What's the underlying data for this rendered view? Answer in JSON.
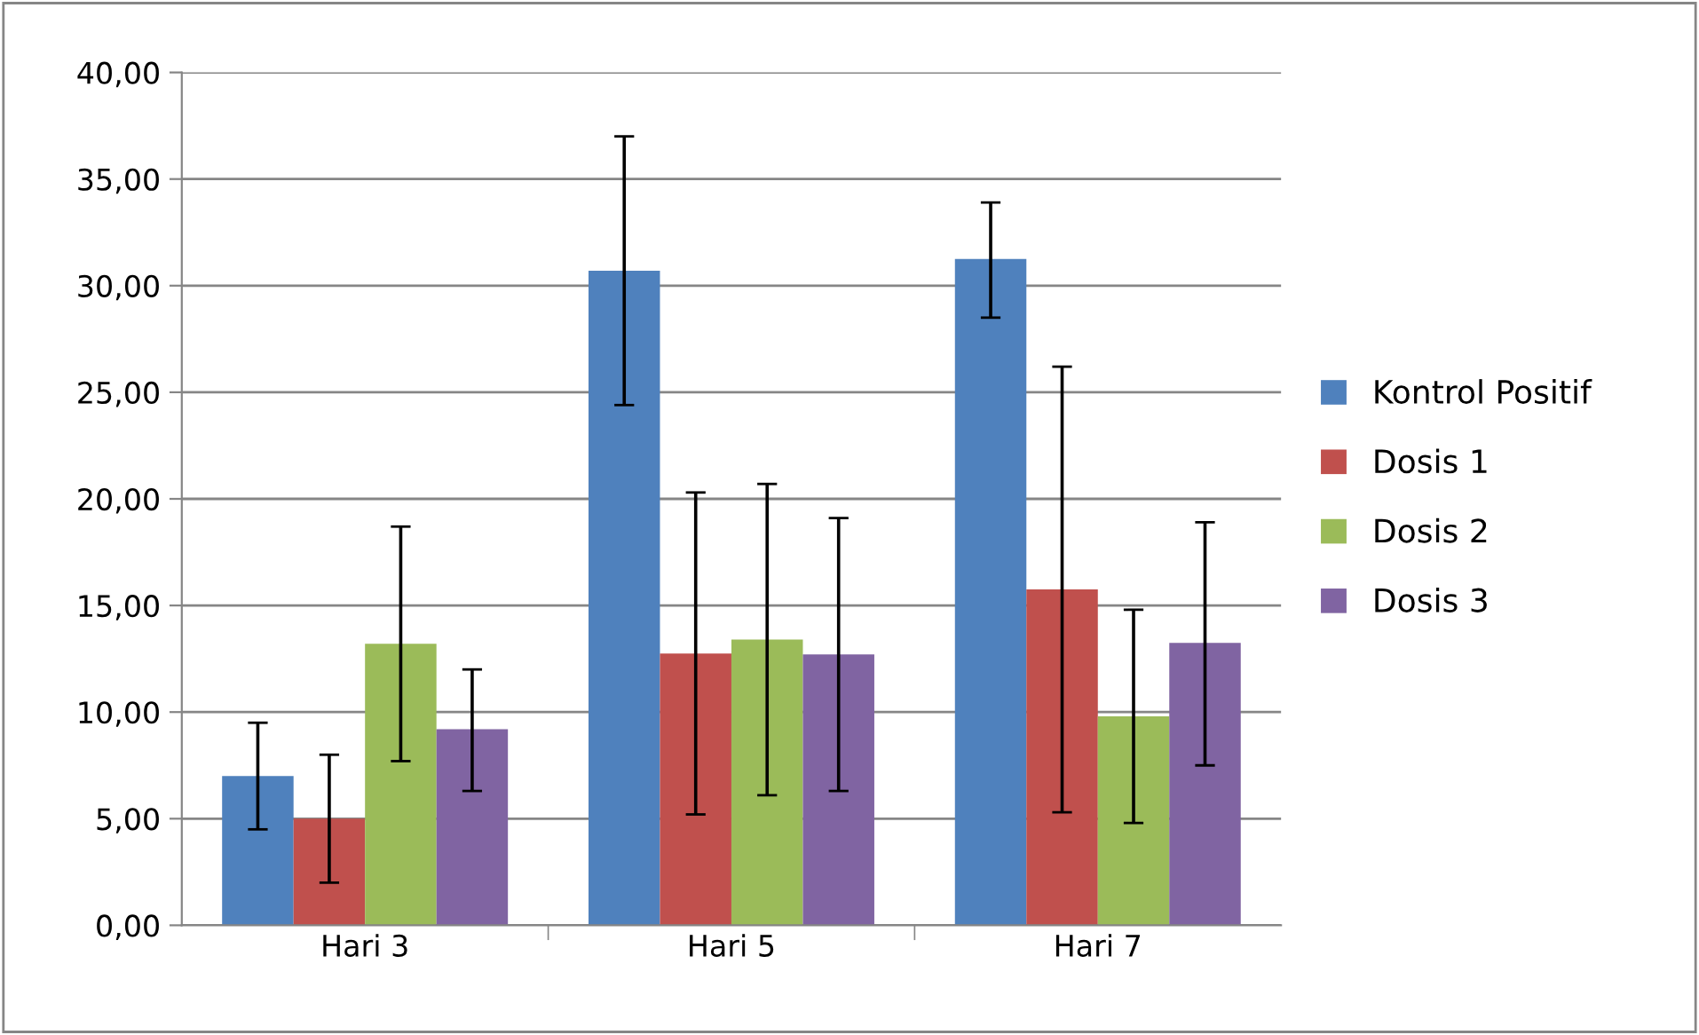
{
  "chart_data": {
    "type": "bar",
    "categories": [
      "Hari 3",
      "Hari 5",
      "Hari 7"
    ],
    "series": [
      {
        "name": "Kontrol Positif",
        "color": "#4f81bd",
        "values": [
          7.0,
          30.7,
          31.25
        ],
        "errors": [
          [
            4.5,
            9.5
          ],
          [
            24.4,
            37.0
          ],
          [
            28.5,
            33.9
          ]
        ]
      },
      {
        "name": "Dosis 1",
        "color": "#c0504d",
        "values": [
          5.0,
          12.75,
          15.75
        ],
        "errors": [
          [
            2.0,
            8.0
          ],
          [
            5.2,
            20.3
          ],
          [
            5.3,
            26.2
          ]
        ]
      },
      {
        "name": "Dosis 2",
        "color": "#9bbb59",
        "values": [
          13.2,
          13.4,
          9.8
        ],
        "errors": [
          [
            7.7,
            18.7
          ],
          [
            6.1,
            20.7
          ],
          [
            4.8,
            14.8
          ]
        ]
      },
      {
        "name": "Dosis 3",
        "color": "#8064a2",
        "values": [
          9.2,
          12.7,
          13.25
        ],
        "errors": [
          [
            6.3,
            12.0
          ],
          [
            6.3,
            19.1
          ],
          [
            7.5,
            18.9
          ]
        ]
      }
    ],
    "ylim": [
      0,
      40
    ],
    "yticks": [
      {
        "value": 0,
        "label": "0,00"
      },
      {
        "value": 5,
        "label": "5,00"
      },
      {
        "value": 10,
        "label": "10,00"
      },
      {
        "value": 15,
        "label": "15,00"
      },
      {
        "value": 20,
        "label": "20,00"
      },
      {
        "value": 25,
        "label": "25,00"
      },
      {
        "value": 30,
        "label": "30,00"
      },
      {
        "value": 35,
        "label": "35,00"
      },
      {
        "value": 40,
        "label": "40,00"
      }
    ],
    "grid": "y",
    "legend": "right"
  }
}
